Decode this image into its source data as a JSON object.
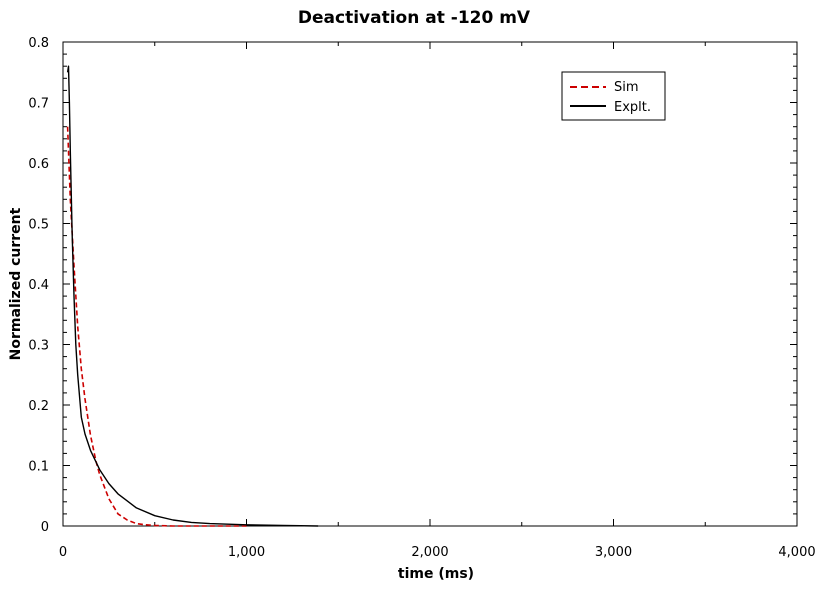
{
  "chart_data": {
    "type": "line",
    "title": "Deactivation at -120 mV",
    "xlabel": "time (ms)",
    "ylabel": "Normalized current",
    "xlim": [
      0,
      4000
    ],
    "ylim": [
      0,
      0.8
    ],
    "x_ticks": [
      0,
      1000,
      2000,
      3000,
      4000
    ],
    "x_tick_labels": [
      "0",
      "1,000",
      "2,000",
      "3,000",
      "4,000"
    ],
    "y_ticks": [
      0,
      0.1,
      0.2,
      0.3,
      0.4,
      0.5,
      0.6,
      0.7,
      0.8
    ],
    "y_tick_labels": [
      "0",
      "0.1",
      "0.2",
      "0.3",
      "0.4",
      "0.5",
      "0.6",
      "0.7",
      "0.8"
    ],
    "grid": false,
    "legend_position": "top-right",
    "series": [
      {
        "name": "Sim",
        "color": "#cc0000",
        "dash": "dashed",
        "x": [
          25,
          40,
          60,
          80,
          100,
          120,
          150,
          180,
          200,
          250,
          300,
          350,
          400,
          450,
          500,
          600,
          700,
          800,
          1000
        ],
        "y": [
          0.66,
          0.54,
          0.43,
          0.33,
          0.26,
          0.21,
          0.15,
          0.107,
          0.085,
          0.045,
          0.02,
          0.01,
          0.004,
          0.002,
          0.001,
          0.0,
          0.0,
          0.0,
          0.0
        ]
      },
      {
        "name": "Explt.",
        "color": "#000000",
        "dash": "solid",
        "x": [
          25,
          30,
          35,
          40,
          50,
          60,
          70,
          80,
          100,
          120,
          150,
          200,
          250,
          300,
          400,
          500,
          600,
          700,
          800,
          1000,
          1200,
          1390
        ],
        "y": [
          0.75,
          0.76,
          0.7,
          0.62,
          0.48,
          0.38,
          0.3,
          0.25,
          0.18,
          0.152,
          0.125,
          0.093,
          0.07,
          0.053,
          0.03,
          0.017,
          0.01,
          0.006,
          0.004,
          0.002,
          0.001,
          0.0
        ]
      }
    ]
  }
}
